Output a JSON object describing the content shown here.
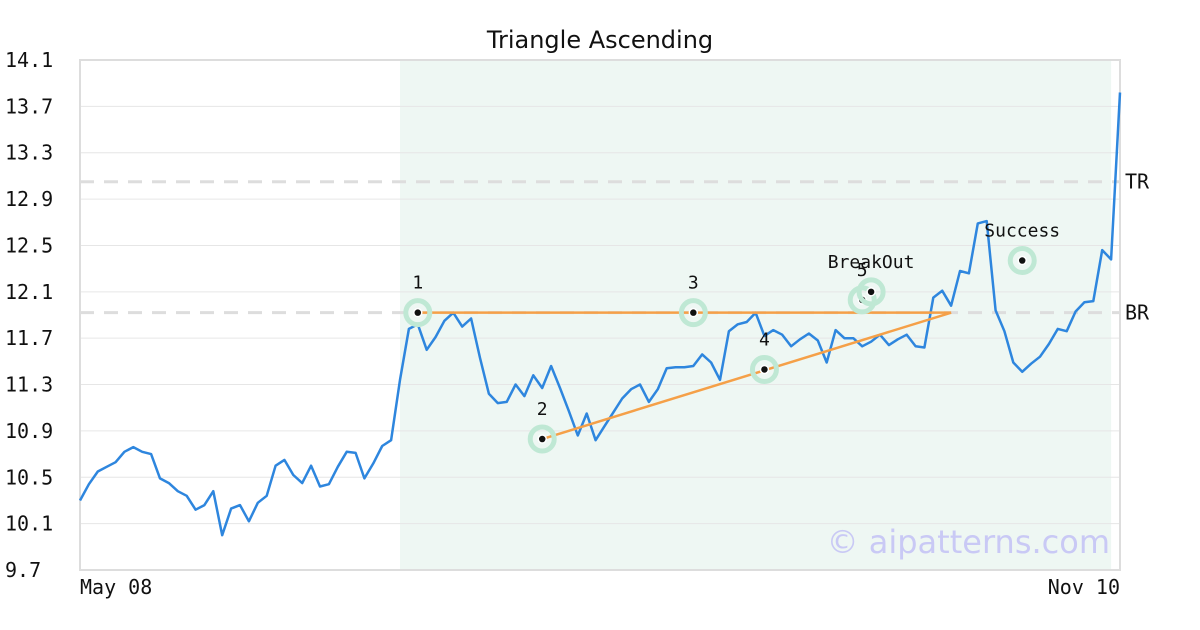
{
  "chart_data": {
    "type": "line",
    "title": "Triangle Ascending",
    "xlabel": "",
    "ylabel": "",
    "ylim": [
      9.7,
      14.1
    ],
    "y_ticks": [
      "14.1",
      "13.7",
      "13.3",
      "12.9",
      "12.5",
      "12.1",
      "11.7",
      "11.3",
      "10.9",
      "10.5",
      "10.1",
      "9.7"
    ],
    "x_tick_labels": [
      "May 08",
      "Nov 10"
    ],
    "x_count": 118,
    "grid": true,
    "series": [
      {
        "color": "#2e86de",
        "values": [
          10.3,
          10.44,
          10.55,
          10.59,
          10.63,
          10.72,
          10.76,
          10.72,
          10.7,
          10.49,
          10.45,
          10.38,
          10.34,
          10.22,
          10.26,
          10.38,
          10.0,
          10.23,
          10.26,
          10.12,
          10.28,
          10.34,
          10.6,
          10.65,
          10.52,
          10.45,
          10.6,
          10.42,
          10.44,
          10.59,
          10.72,
          10.71,
          10.49,
          10.62,
          10.77,
          10.82,
          11.34,
          11.78,
          11.82,
          11.6,
          11.71,
          11.85,
          11.92,
          11.8,
          11.87,
          11.53,
          11.22,
          11.14,
          11.15,
          11.3,
          11.2,
          11.38,
          11.27,
          11.46,
          11.27,
          11.07,
          10.86,
          11.05,
          10.82,
          10.94,
          11.06,
          11.18,
          11.26,
          11.3,
          11.15,
          11.26,
          11.44,
          11.45,
          11.45,
          11.46,
          11.56,
          11.49,
          11.34,
          11.76,
          11.82,
          11.84,
          11.92,
          11.72,
          11.77,
          11.73,
          11.63,
          11.69,
          11.74,
          11.68,
          11.49,
          11.77,
          11.7,
          11.7,
          11.63,
          11.67,
          11.73,
          11.64,
          11.69,
          11.73,
          11.63,
          11.62,
          12.05,
          12.11,
          11.98,
          12.28,
          12.26,
          12.69,
          12.71,
          11.94,
          11.76,
          11.49,
          11.41,
          11.48,
          11.54,
          11.65,
          11.78,
          11.76,
          11.93,
          12.01,
          12.02,
          12.46,
          12.38,
          13.82
        ]
      }
    ],
    "levels": [
      {
        "label": "TR",
        "value": 13.05,
        "color": "#dddddd"
      },
      {
        "label": "BR",
        "value": 11.92,
        "color": "#dddddd"
      }
    ],
    "pattern_region": {
      "start_index": 36,
      "end_index": 116,
      "color": "#eef7f3"
    },
    "trendlines": [
      {
        "from": {
          "index": 38,
          "value": 11.92
        },
        "to": {
          "index": 98,
          "value": 11.92
        },
        "color": "#f5a048"
      },
      {
        "from": {
          "index": 52,
          "value": 10.83
        },
        "to": {
          "index": 98,
          "value": 11.92
        },
        "color": "#f5a048"
      }
    ],
    "annotations": [
      {
        "label": "1",
        "index": 38,
        "value": 11.92
      },
      {
        "label": "2",
        "index": 52,
        "value": 10.83
      },
      {
        "label": "3",
        "index": 69,
        "value": 11.92
      },
      {
        "label": "4",
        "index": 77,
        "value": 11.43
      },
      {
        "label": "5",
        "index": 88,
        "value": 12.03
      },
      {
        "label": "BreakOut",
        "index": 89,
        "value": 12.1
      },
      {
        "label": "Success",
        "index": 106,
        "value": 12.37
      }
    ],
    "watermark": "© aipatterns.com"
  }
}
